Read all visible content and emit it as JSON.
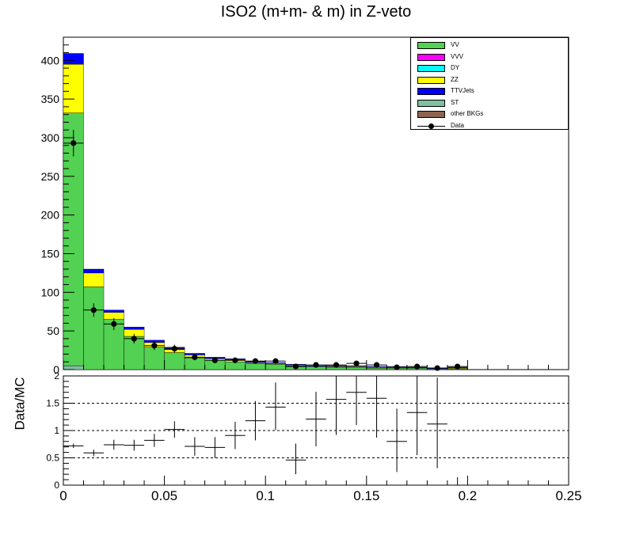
{
  "title": "ISO2 (m+m- & m) in Z-veto",
  "chart_data": [
    {
      "type": "bar",
      "stacked": true,
      "title": "ISO2 (m+m- & m) in Z-veto",
      "xlim": [
        0,
        0.25
      ],
      "ylim": [
        0,
        430
      ],
      "bin_width": 0.01,
      "bin_low_edges": [
        0.0,
        0.01,
        0.02,
        0.03,
        0.04,
        0.05,
        0.06,
        0.07,
        0.08,
        0.09,
        0.1,
        0.11,
        0.12,
        0.13,
        0.14,
        0.15,
        0.16,
        0.17,
        0.18,
        0.19
      ],
      "y_ticks": [
        0,
        50,
        100,
        150,
        200,
        250,
        300,
        350,
        400
      ],
      "series": [
        {
          "name": "ST",
          "color": "#80c0a0",
          "values": [
            5,
            0,
            0,
            0,
            0,
            0,
            0,
            0,
            0,
            0,
            0,
            0,
            0,
            0,
            0,
            0,
            0,
            0,
            0,
            0
          ]
        },
        {
          "name": "VV",
          "color": "#52d152",
          "values": [
            327,
            107,
            65,
            43,
            29,
            22,
            15,
            12,
            10,
            8,
            7,
            5,
            4,
            3,
            3,
            2,
            2,
            2,
            1,
            1
          ]
        },
        {
          "name": "ZZ",
          "color": "#ffff00",
          "values": [
            63,
            18,
            9,
            9,
            6,
            4,
            4,
            2,
            2,
            1,
            1,
            1,
            0,
            1,
            1,
            1,
            1,
            0,
            0,
            1
          ]
        },
        {
          "name": "TTVJets",
          "color": "#0000ff",
          "values": [
            14,
            5,
            3,
            3,
            3,
            3,
            2,
            2,
            2,
            2,
            1,
            1,
            1,
            1,
            1,
            1,
            1,
            1,
            1,
            1
          ]
        }
      ],
      "data_series": {
        "name": "Data",
        "values": [
          293,
          77,
          59,
          40,
          31,
          27,
          16,
          12,
          12,
          11,
          11,
          4,
          6,
          6,
          8,
          6,
          3,
          4,
          2,
          4
        ]
      }
    },
    {
      "type": "scatter",
      "ylabel": "Data/MC",
      "xlim": [
        0,
        0.25
      ],
      "ylim": [
        0,
        2
      ],
      "x_ticks": [
        0,
        0.05,
        0.1,
        0.15,
        0.2,
        0.25
      ],
      "y_ticks": [
        0,
        0.5,
        1,
        1.5,
        2
      ],
      "reference_lines": [
        0.5,
        1,
        1.5
      ],
      "x": [
        0.005,
        0.015,
        0.025,
        0.035,
        0.045,
        0.055,
        0.065,
        0.075,
        0.085,
        0.095,
        0.105,
        0.115,
        0.125,
        0.135,
        0.145,
        0.155,
        0.165,
        0.175,
        0.185,
        0.195
      ],
      "ratio": [
        0.72,
        0.59,
        0.74,
        0.73,
        0.82,
        1.02,
        0.71,
        0.69,
        0.91,
        1.18,
        1.43,
        0.46,
        1.21,
        1.57,
        1.7,
        1.59,
        0.8,
        1.33,
        1.12,
        null
      ],
      "err_low": [
        0.04,
        0.06,
        0.09,
        0.1,
        0.12,
        0.15,
        0.17,
        0.19,
        0.25,
        0.36,
        0.42,
        0.26,
        0.5,
        0.65,
        0.6,
        0.72,
        0.56,
        0.78,
        0.81,
        null
      ],
      "err_high": [
        0.04,
        0.06,
        0.09,
        0.1,
        0.12,
        0.15,
        0.17,
        0.19,
        0.25,
        0.36,
        0.45,
        0.3,
        0.5,
        0.7,
        0.65,
        0.75,
        0.6,
        0.8,
        0.85,
        null
      ]
    }
  ],
  "legend": [
    {
      "label": "VV",
      "color": "#52d152",
      "kind": "fill"
    },
    {
      "label": "VVV",
      "color": "#ff00ff",
      "kind": "fill"
    },
    {
      "label": "DY",
      "color": "#00ffff",
      "kind": "fill"
    },
    {
      "label": "ZZ",
      "color": "#ffff00",
      "kind": "fill"
    },
    {
      "label": "TTVJets",
      "color": "#0000ff",
      "kind": "fill"
    },
    {
      "label": "ST",
      "color": "#80c0a0",
      "kind": "fill"
    },
    {
      "label": "other BKGs",
      "color": "#8c6450",
      "kind": "fill"
    },
    {
      "label": "Data",
      "color": "#000000",
      "kind": "marker"
    }
  ],
  "ratio_ylabel": "Data/MC"
}
